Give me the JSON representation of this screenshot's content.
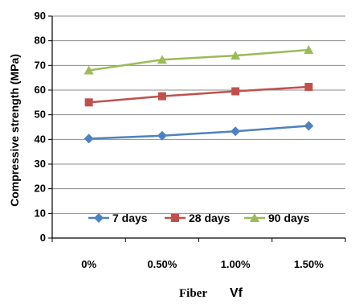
{
  "chart_data": {
    "type": "line",
    "categories": [
      "0%",
      "0.50%",
      "1.00%",
      "1.50%"
    ],
    "series": [
      {
        "name": "7 days",
        "values": [
          40.3,
          41.5,
          43.3,
          45.5
        ],
        "color": "#4f81bd",
        "marker": "diamond"
      },
      {
        "name": "28 days",
        "values": [
          55.0,
          57.5,
          59.5,
          61.3
        ],
        "color": "#c0504d",
        "marker": "square"
      },
      {
        "name": "90 days",
        "values": [
          68.0,
          72.3,
          74.0,
          76.3
        ],
        "color": "#9bbb59",
        "marker": "triangle"
      }
    ],
    "ylabel": "Compressive strength (MPa)",
    "xlabel_part1": "Fiber",
    "xlabel_part2": "Vf",
    "ylim": [
      0,
      90
    ],
    "yticks": [
      "0",
      "10",
      "20",
      "30",
      "40",
      "50",
      "60",
      "70",
      "80",
      "90"
    ],
    "grid": true,
    "legend_position": "bottom-inside"
  }
}
